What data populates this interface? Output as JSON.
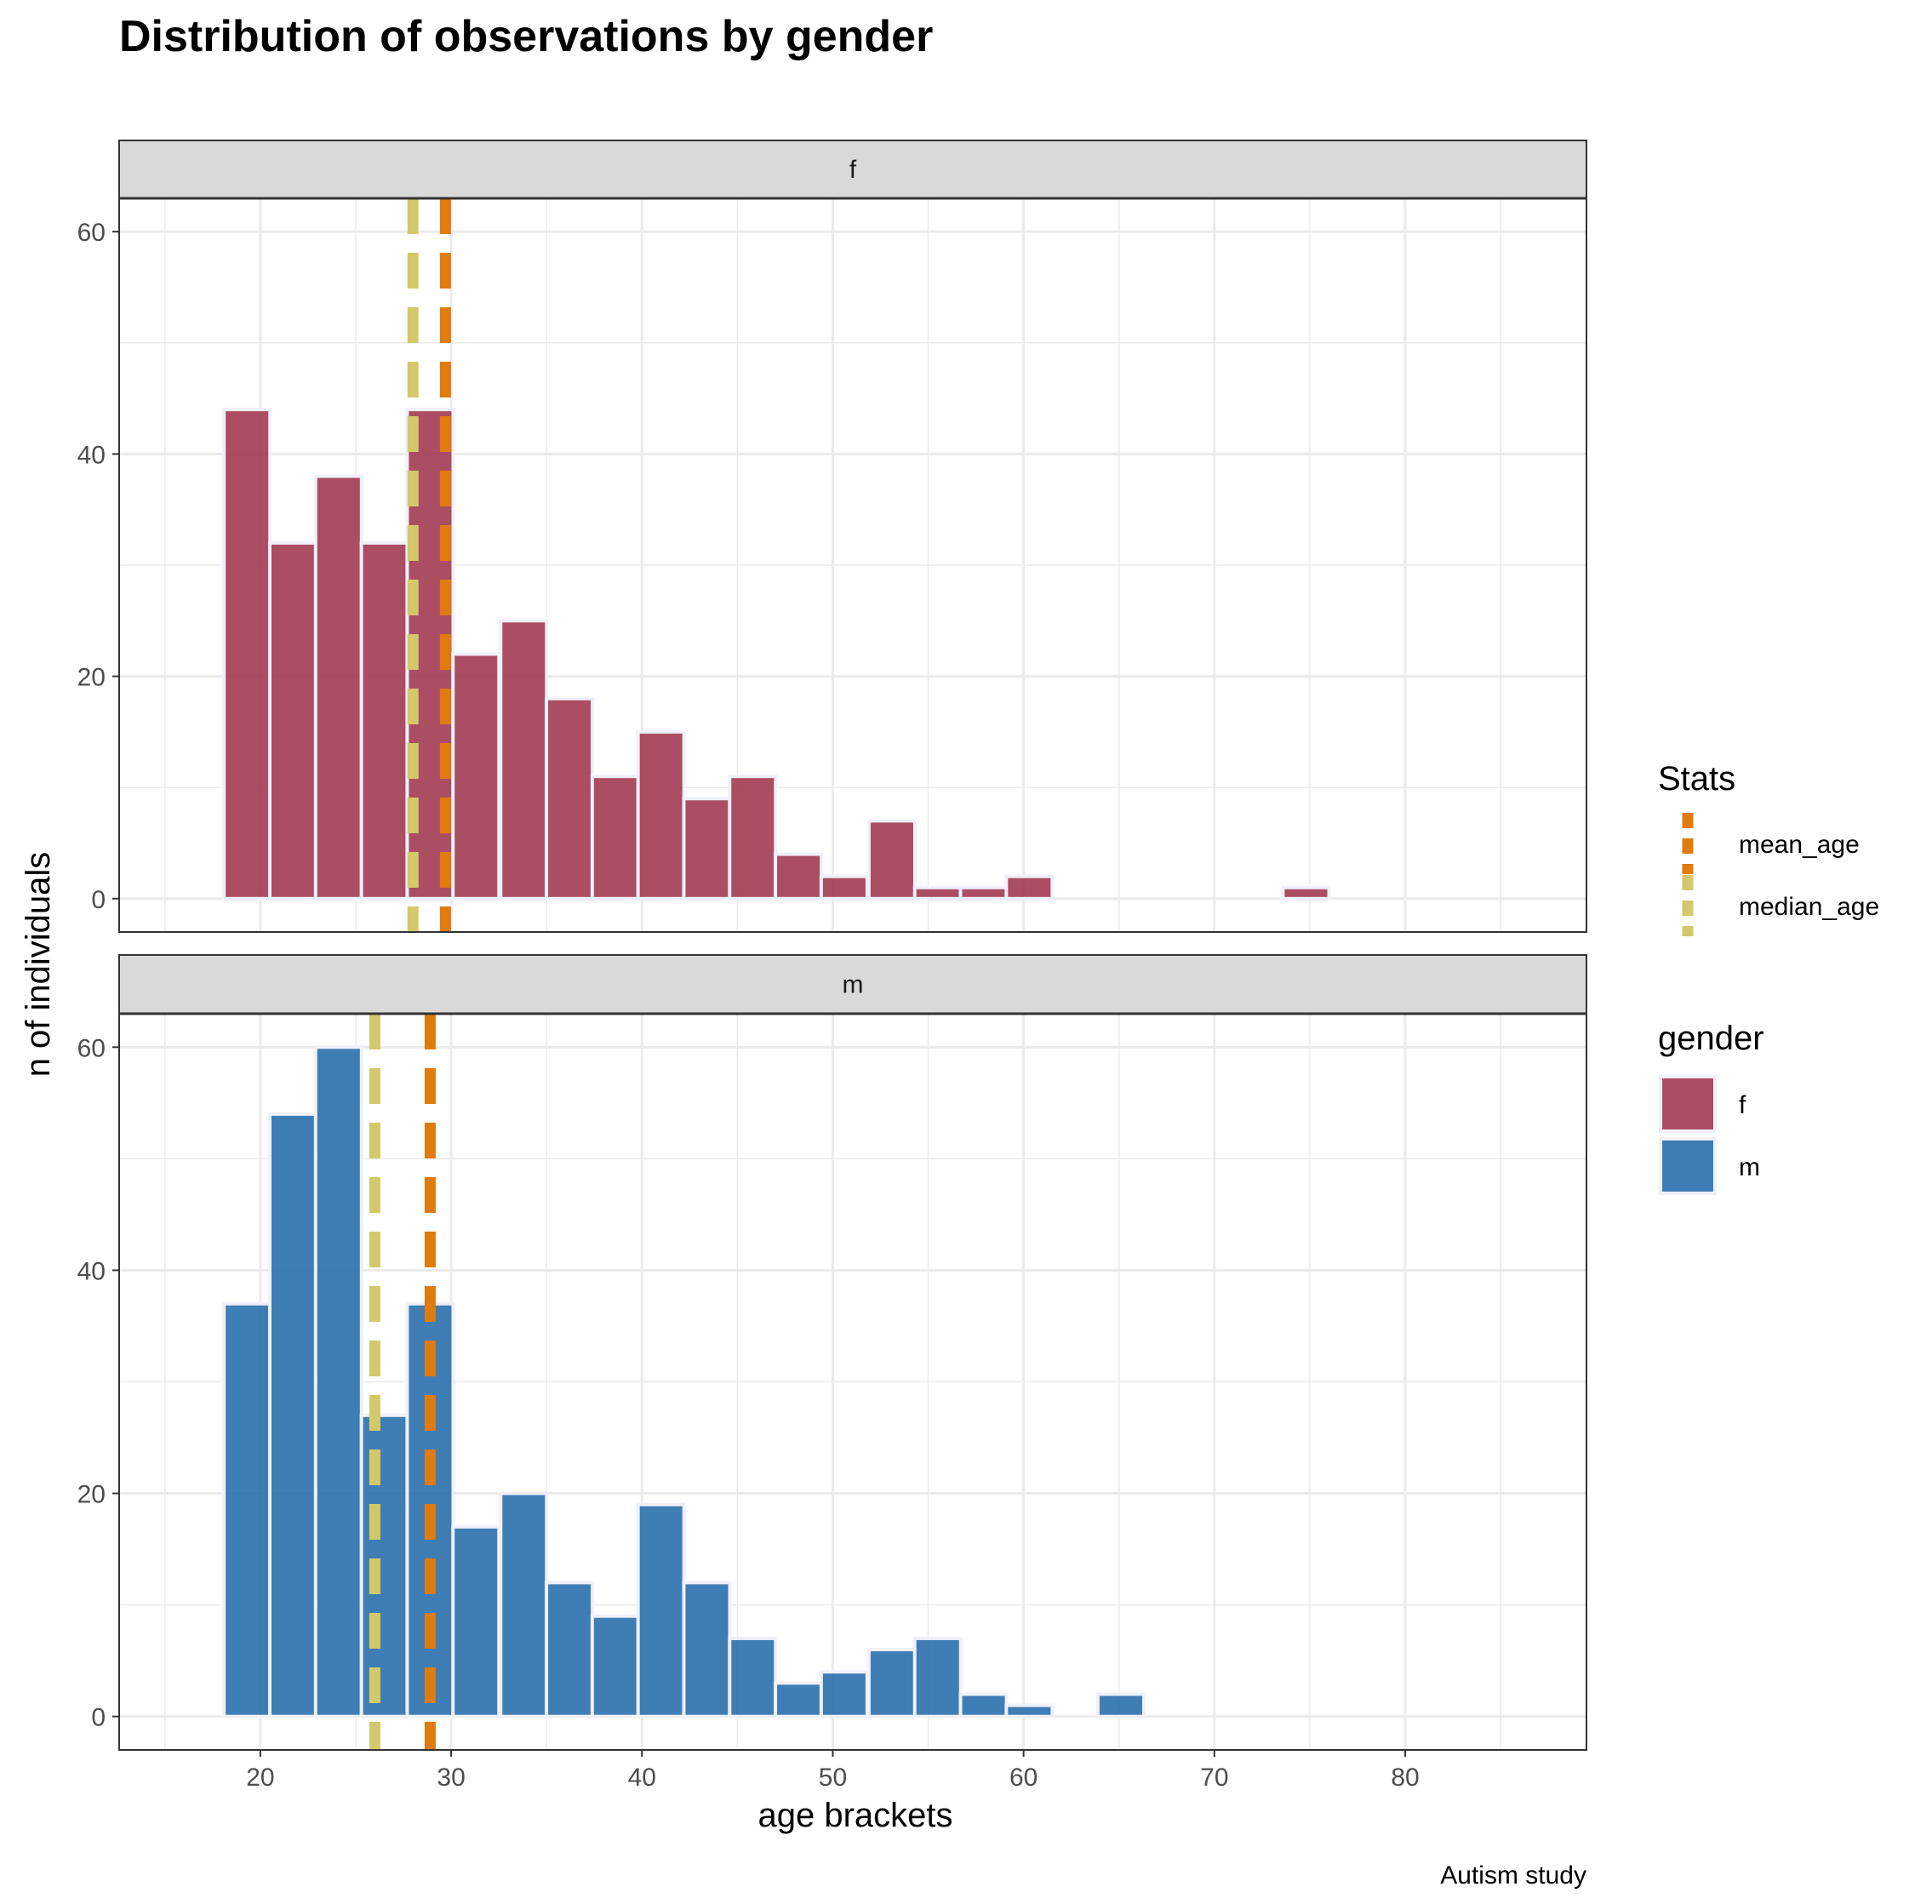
{
  "chart_data": {
    "type": "bar",
    "title": "Distribution of observations by gender",
    "xlabel": "age brackets",
    "ylabel": "n of individuals",
    "caption": "Autism study",
    "xlim": [
      12.6,
      89.5
    ],
    "ylim": [
      -3,
      63
    ],
    "x_ticks": [
      "20",
      "30",
      "40",
      "50",
      "60",
      "70",
      "80"
    ],
    "x_tick_values": [
      20,
      30,
      40,
      50,
      60,
      70,
      80
    ],
    "y_ticks": [
      "0",
      "20",
      "40",
      "60"
    ],
    "y_tick_values": [
      0,
      20,
      40,
      60
    ],
    "grid": true,
    "bin_width": 2.41,
    "facets": [
      {
        "label": "f",
        "color": "#A23B52",
        "bins": [
          {
            "x": 19.3,
            "count": 44
          },
          {
            "x": 21.7,
            "count": 32
          },
          {
            "x": 24.1,
            "count": 38
          },
          {
            "x": 26.5,
            "count": 32
          },
          {
            "x": 28.9,
            "count": 44
          },
          {
            "x": 31.3,
            "count": 22
          },
          {
            "x": 33.8,
            "count": 25
          },
          {
            "x": 36.2,
            "count": 18
          },
          {
            "x": 38.6,
            "count": 11
          },
          {
            "x": 41.0,
            "count": 15
          },
          {
            "x": 43.4,
            "count": 9
          },
          {
            "x": 45.8,
            "count": 11
          },
          {
            "x": 48.2,
            "count": 4
          },
          {
            "x": 50.6,
            "count": 2
          },
          {
            "x": 53.1,
            "count": 7
          },
          {
            "x": 55.5,
            "count": 1
          },
          {
            "x": 57.9,
            "count": 1
          },
          {
            "x": 60.3,
            "count": 2
          },
          {
            "x": 74.8,
            "count": 1
          }
        ],
        "mean_age": 29.7,
        "median_age": 28.0
      },
      {
        "label": "m",
        "color": "#2A6FAD",
        "bins": [
          {
            "x": 19.3,
            "count": 37
          },
          {
            "x": 21.7,
            "count": 54
          },
          {
            "x": 24.1,
            "count": 60
          },
          {
            "x": 26.5,
            "count": 27
          },
          {
            "x": 28.9,
            "count": 37
          },
          {
            "x": 31.3,
            "count": 17
          },
          {
            "x": 33.8,
            "count": 20
          },
          {
            "x": 36.2,
            "count": 12
          },
          {
            "x": 38.6,
            "count": 9
          },
          {
            "x": 41.0,
            "count": 19
          },
          {
            "x": 43.4,
            "count": 12
          },
          {
            "x": 45.8,
            "count": 7
          },
          {
            "x": 48.2,
            "count": 3
          },
          {
            "x": 50.6,
            "count": 4
          },
          {
            "x": 53.1,
            "count": 6
          },
          {
            "x": 55.5,
            "count": 7
          },
          {
            "x": 57.9,
            "count": 2
          },
          {
            "x": 60.3,
            "count": 1
          },
          {
            "x": 65.1,
            "count": 2
          }
        ],
        "mean_age": 28.9,
        "median_age": 26.0
      }
    ],
    "legends": [
      {
        "title": "Stats",
        "items": [
          {
            "label": "mean_age",
            "color": "#E07B10"
          },
          {
            "label": "median_age",
            "color": "#D4C96A"
          }
        ]
      },
      {
        "title": "gender",
        "items": [
          {
            "label": "f",
            "color": "#A23B52"
          },
          {
            "label": "m",
            "color": "#2A6FAD"
          }
        ]
      }
    ],
    "legend_position": "right"
  }
}
